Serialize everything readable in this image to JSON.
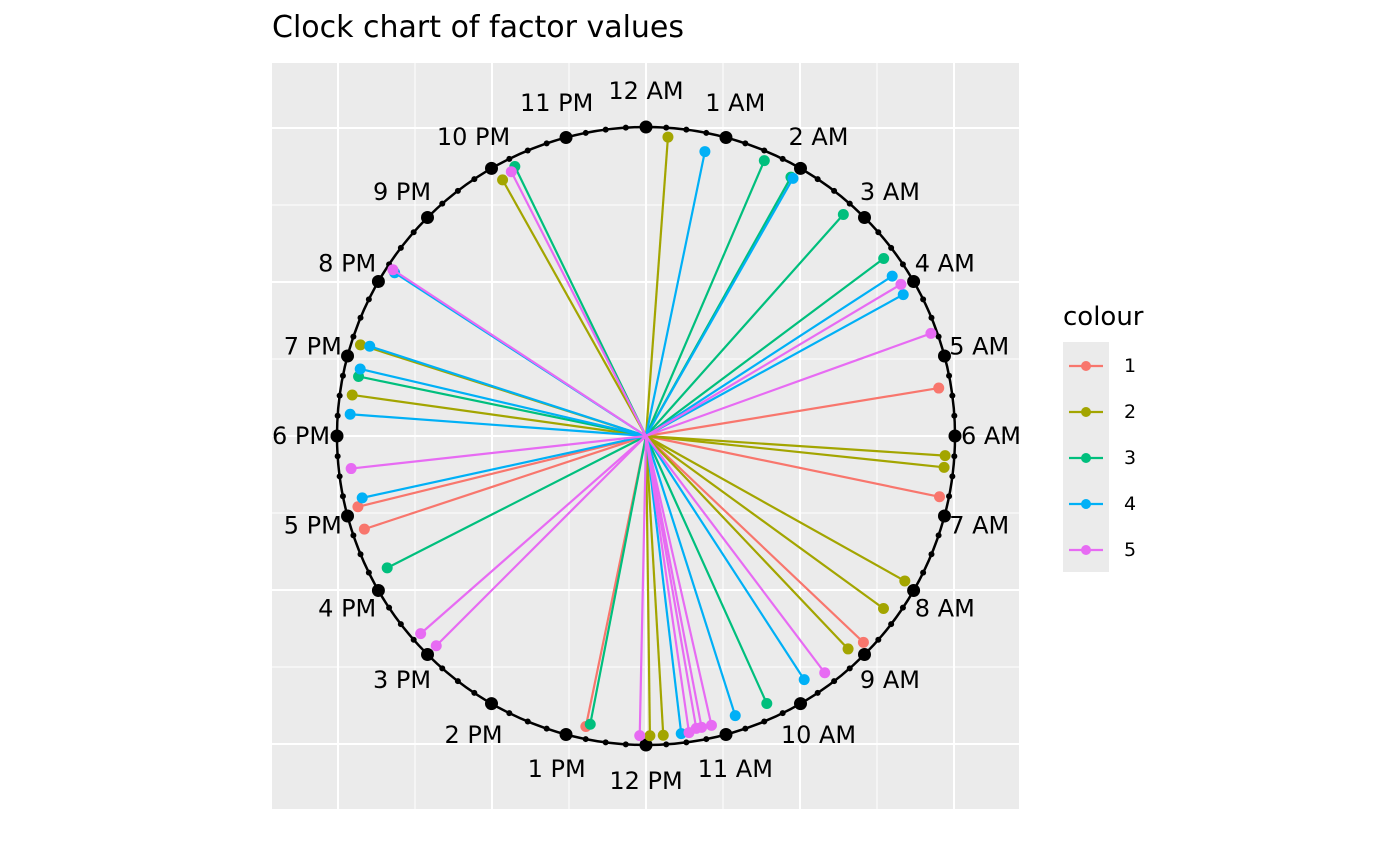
{
  "chart_data": {
    "type": "clock",
    "title": "Clock chart of factor values",
    "hour_labels": [
      "12 AM",
      "1 AM",
      "2 AM",
      "3 AM",
      "4 AM",
      "5 AM",
      "6 AM",
      "7 AM",
      "8 AM",
      "9 AM",
      "10 AM",
      "11 AM",
      "12 PM",
      "1 PM",
      "2 PM",
      "3 PM",
      "4 PM",
      "5 PM",
      "6 PM",
      "7 PM",
      "8 PM",
      "9 PM",
      "10 PM",
      "11 PM"
    ],
    "legend": {
      "title": "colour",
      "position": "right",
      "entries": [
        {
          "label": "1",
          "color": "#F8766D"
        },
        {
          "label": "2",
          "color": "#A3A500"
        },
        {
          "label": "3",
          "color": "#00BF7D"
        },
        {
          "label": "4",
          "color": "#00B0F6"
        },
        {
          "label": "5",
          "color": "#E76BF3"
        }
      ]
    },
    "series": [
      {
        "name": "1",
        "color": "#F8766D",
        "points": [
          {
            "hour": 5.38,
            "value": 0.96
          },
          {
            "hour": 6.78,
            "value": 0.97
          },
          {
            "hour": 8.9,
            "value": 0.97
          },
          {
            "hour": 12.78,
            "value": 0.96
          },
          {
            "hour": 16.78,
            "value": 0.96
          },
          {
            "hour": 17.08,
            "value": 0.96
          }
        ]
      },
      {
        "name": "2",
        "color": "#A3A500",
        "points": [
          {
            "hour": 0.28,
            "value": 0.97
          },
          {
            "hour": 6.25,
            "value": 0.97
          },
          {
            "hour": 6.4,
            "value": 0.97
          },
          {
            "hour": 7.95,
            "value": 0.96
          },
          {
            "hour": 8.4,
            "value": 0.95
          },
          {
            "hour": 9.1,
            "value": 0.95
          },
          {
            "hour": 11.78,
            "value": 0.97
          },
          {
            "hour": 11.95,
            "value": 0.97
          },
          {
            "hour": 18.53,
            "value": 0.96
          },
          {
            "hour": 19.18,
            "value": 0.97
          },
          {
            "hour": 22.05,
            "value": 0.95
          }
        ]
      },
      {
        "name": "3",
        "color": "#00BF7D",
        "points": [
          {
            "hour": 1.55,
            "value": 0.97
          },
          {
            "hour": 1.95,
            "value": 0.96
          },
          {
            "hour": 2.78,
            "value": 0.96
          },
          {
            "hour": 3.55,
            "value": 0.96
          },
          {
            "hour": 10.38,
            "value": 0.95
          },
          {
            "hour": 12.73,
            "value": 0.95
          },
          {
            "hour": 16.2,
            "value": 0.94
          },
          {
            "hour": 18.78,
            "value": 0.95
          },
          {
            "hour": 22.27,
            "value": 0.97
          }
        ]
      },
      {
        "name": "4",
        "color": "#00B0F6",
        "points": [
          {
            "hour": 0.78,
            "value": 0.94
          },
          {
            "hour": 1.98,
            "value": 0.96
          },
          {
            "hour": 3.8,
            "value": 0.95
          },
          {
            "hour": 4.08,
            "value": 0.95
          },
          {
            "hour": 9.8,
            "value": 0.94
          },
          {
            "hour": 10.82,
            "value": 0.95
          },
          {
            "hour": 11.55,
            "value": 0.97
          },
          {
            "hour": 17.18,
            "value": 0.94
          },
          {
            "hour": 18.28,
            "value": 0.96
          },
          {
            "hour": 18.88,
            "value": 0.95
          },
          {
            "hour": 19.2,
            "value": 0.94
          },
          {
            "hour": 20.2,
            "value": 0.97
          }
        ]
      },
      {
        "name": "5",
        "color": "#E76BF3",
        "points": [
          {
            "hour": 3.95,
            "value": 0.96
          },
          {
            "hour": 4.68,
            "value": 0.98
          },
          {
            "hour": 9.53,
            "value": 0.96
          },
          {
            "hour": 11.15,
            "value": 0.96
          },
          {
            "hour": 11.28,
            "value": 0.96
          },
          {
            "hour": 11.35,
            "value": 0.96
          },
          {
            "hour": 11.45,
            "value": 0.97
          },
          {
            "hour": 12.08,
            "value": 0.97
          },
          {
            "hour": 15.0,
            "value": 0.96
          },
          {
            "hour": 15.25,
            "value": 0.97
          },
          {
            "hour": 17.58,
            "value": 0.96
          },
          {
            "hour": 20.22,
            "value": 0.98
          },
          {
            "hour": 22.2,
            "value": 0.96
          }
        ]
      }
    ]
  }
}
